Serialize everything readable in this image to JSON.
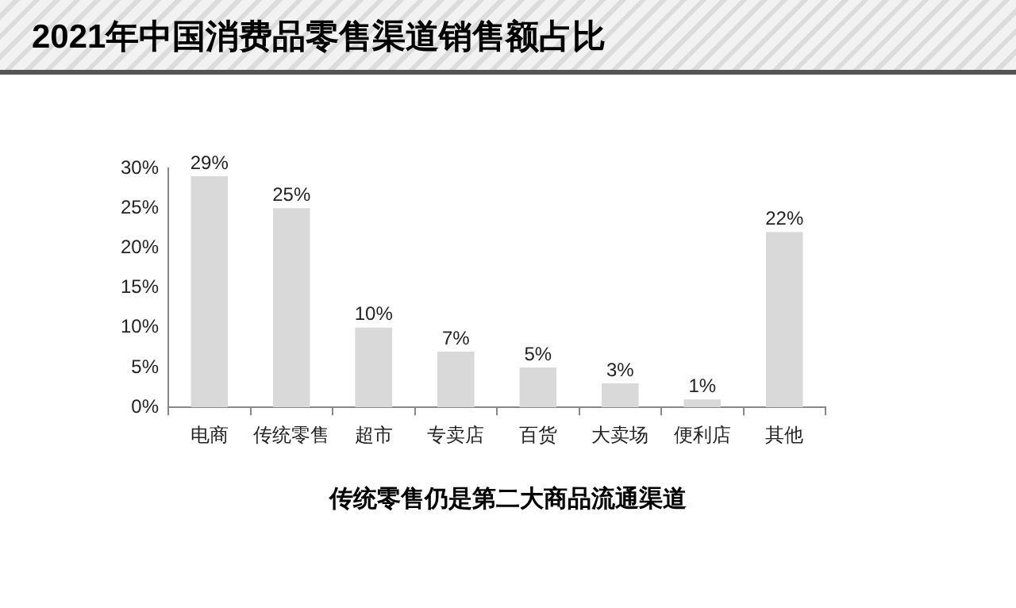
{
  "chart_data": {
    "type": "bar",
    "title": "2021年中国消费品零售渠道销售额占比",
    "categories": [
      "电商",
      "传统零售",
      "超市",
      "专卖店",
      "百货",
      "大卖场",
      "便利店",
      "其他"
    ],
    "values": [
      29,
      25,
      10,
      7,
      5,
      3,
      1,
      22
    ],
    "value_labels": [
      "29%",
      "25%",
      "10%",
      "7%",
      "5%",
      "3%",
      "1%",
      "22%"
    ],
    "color": "#d9d9d9",
    "ylim": [
      0,
      30
    ],
    "yticks": [
      {
        "value": 0,
        "label": "0%"
      },
      {
        "value": 5,
        "label": "5%"
      },
      {
        "value": 10,
        "label": "10%"
      },
      {
        "value": 15,
        "label": "15%"
      },
      {
        "value": 20,
        "label": "20%"
      },
      {
        "value": 25,
        "label": "25%"
      },
      {
        "value": 30,
        "label": "30%"
      }
    ],
    "grid": false,
    "legend": false,
    "annotations": [
      "传统零售仍是第二大商品流通渠道"
    ]
  }
}
